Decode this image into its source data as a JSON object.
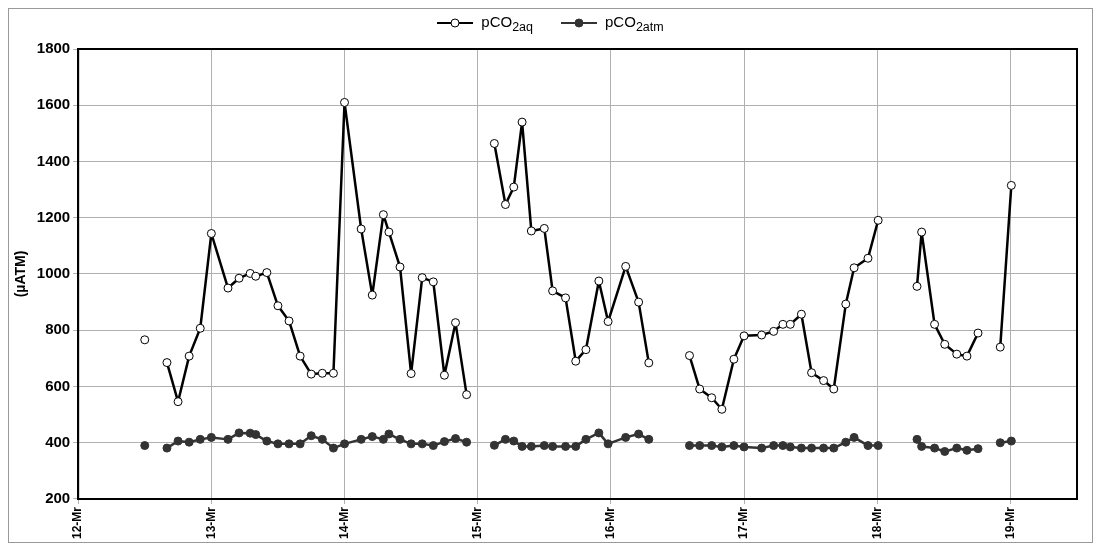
{
  "chart_data": {
    "type": "line",
    "ylabel": "(µATM)",
    "legend": "top",
    "marker": "circle",
    "grid": true,
    "line_style": "solid",
    "xlim": [
      "--03-12",
      "--03-19T12:00"
    ],
    "xticks": [
      {
        "value": "--03-12",
        "label": "12-Mr"
      },
      {
        "value": "--03-13",
        "label": "13-Mr"
      },
      {
        "value": "--03-14",
        "label": "14-Mr"
      },
      {
        "value": "--03-15",
        "label": "15-Mr"
      },
      {
        "value": "--03-16",
        "label": "16-Mr"
      },
      {
        "value": "--03-17",
        "label": "17-Mr"
      },
      {
        "value": "--03-18",
        "label": "18-Mr"
      },
      {
        "value": "--03-19",
        "label": "19-Mr"
      }
    ],
    "ylim": [
      200,
      1800
    ],
    "yticks": [
      200,
      400,
      600,
      800,
      1000,
      1200,
      1400,
      1600,
      1800
    ],
    "x": [
      "--03-12T12:00",
      "--03-12T14:00",
      "--03-12T16:00",
      "--03-12T18:00",
      "--03-12T20:00",
      "--03-12T22:00",
      "--03-13T00:00",
      "--03-13T03:00",
      "--03-13T05:00",
      "--03-13T07:00",
      "--03-13T08:00",
      "--03-13T10:00",
      "--03-13T12:00",
      "--03-13T14:00",
      "--03-13T16:00",
      "--03-13T18:00",
      "--03-13T20:00",
      "--03-13T22:00",
      "--03-14T00:00",
      "--03-14T03:00",
      "--03-14T05:00",
      "--03-14T07:00",
      "--03-14T08:00",
      "--03-14T10:00",
      "--03-14T12:00",
      "--03-14T14:00",
      "--03-14T16:00",
      "--03-14T18:00",
      "--03-14T20:00",
      "--03-14T22:00",
      "--03-15T00:30",
      "--03-15T03:00",
      "--03-15T05:00",
      "--03-15T06:30",
      "--03-15T08:00",
      "--03-15T09:40",
      "--03-15T12:00",
      "--03-15T13:30",
      "--03-15T15:50",
      "--03-15T17:40",
      "--03-15T19:30",
      "--03-15T21:50",
      "--03-15T23:30",
      "--03-16T02:40",
      "--03-16T05:00",
      "--03-16T06:50",
      "--03-16T10:00",
      "--03-16T14:10",
      "--03-16T16:00",
      "--03-16T18:10",
      "--03-16T20:00",
      "--03-16T22:10",
      "--03-17T00:00",
      "--03-17T03:10",
      "--03-17T05:20",
      "--03-17T07:00",
      "--03-17T08:20",
      "--03-17T10:20",
      "--03-17T12:10",
      "--03-17T14:20",
      "--03-17T16:10",
      "--03-17T18:20",
      "--03-17T19:50",
      "--03-17T22:20",
      "--03-18T00:10",
      "--03-18T04:00",
      "--03-18T07:10",
      "--03-18T08:00",
      "--03-18T10:20",
      "--03-18T12:10",
      "--03-18T14:20",
      "--03-18T16:10",
      "--03-18T18:10",
      "--03-18T20:10",
      "--03-18T22:10",
      "--03-19T00:10"
    ],
    "series": [
      {
        "name": "pCO$_{2aq}$",
        "color": "#000000",
        "values": [
          766,
          null,
          685,
          546,
          708,
          807,
          1144,
          950,
          985,
          1002,
          992,
          1005,
          887,
          833,
          708,
          644,
          647,
          647,
          1610,
          1160,
          925,
          1211,
          1149,
          1025,
          646,
          987,
          972,
          640,
          827,
          571,
          null,
          1464,
          1247,
          1309,
          1540,
          1153,
          1162,
          940,
          915,
          690,
          731,
          975,
          831,
          1027,
          900,
          684,
          null,
          710,
          591,
          560,
          519,
          697,
          780,
          783,
          796,
          821,
          821,
          857,
          649,
          621,
          591,
          893,
          1022,
          1056,
          1191,
          null,
          956,
          1149,
          821,
          750,
          715,
          708,
          790,
          null,
          740,
          1315
        ]
      },
      {
        "name": "pCO$_{2atm}$",
        "color": "#333333",
        "values": [
          390,
          null,
          381,
          406,
          402,
          412,
          419,
          412,
          435,
          434,
          429,
          406,
          396,
          396,
          396,
          425,
          412,
          381,
          396,
          412,
          422,
          412,
          431,
          412,
          396,
          396,
          390,
          404,
          415,
          402,
          null,
          391,
          412,
          406,
          387,
          387,
          390,
          387,
          387,
          387,
          412,
          435,
          396,
          419,
          431,
          412,
          null,
          390,
          390,
          390,
          385,
          390,
          385,
          381,
          390,
          390,
          385,
          381,
          381,
          381,
          381,
          402,
          419,
          390,
          390,
          null,
          412,
          387,
          381,
          369,
          381,
          373,
          379,
          null,
          400,
          406
        ]
      }
    ]
  }
}
